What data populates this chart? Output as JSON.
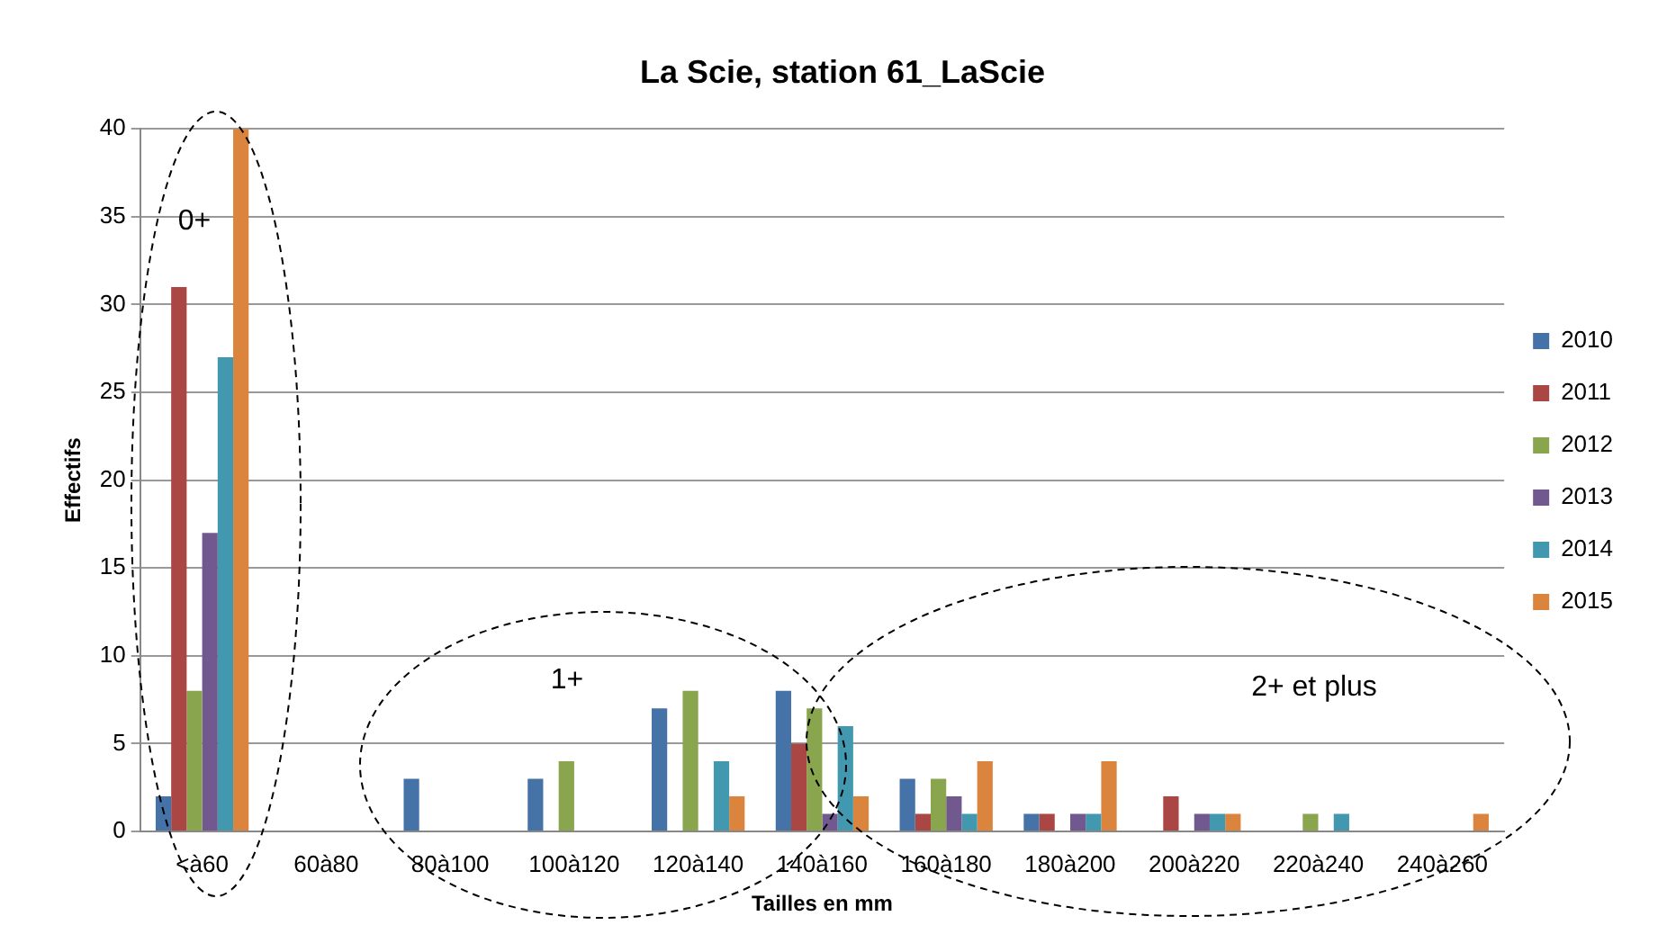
{
  "chart_data": {
    "type": "bar",
    "title": "La Scie, station 61_LaScie",
    "xlabel": "Tailles en mm",
    "ylabel": "Effectifs",
    "categories": [
      "<à60",
      "60à80",
      "80à100",
      "100à120",
      "120à140",
      "140à160",
      "160à180",
      "180à200",
      "200à220",
      "220à240",
      "240à260"
    ],
    "series": [
      {
        "name": "2010",
        "color": "#4572a7",
        "values": [
          2,
          0,
          3,
          3,
          7,
          8,
          3,
          1,
          0,
          0,
          0
        ]
      },
      {
        "name": "2011",
        "color": "#aa4643",
        "values": [
          31,
          0,
          0,
          0,
          0,
          5,
          1,
          1,
          2,
          0,
          0
        ]
      },
      {
        "name": "2012",
        "color": "#89a54e",
        "values": [
          8,
          0,
          0,
          4,
          8,
          7,
          3,
          0,
          0,
          1,
          0
        ]
      },
      {
        "name": "2013",
        "color": "#71588f",
        "values": [
          17,
          0,
          0,
          0,
          0,
          1,
          2,
          1,
          1,
          0,
          0
        ]
      },
      {
        "name": "2014",
        "color": "#4198af",
        "values": [
          27,
          0,
          0,
          0,
          4,
          6,
          1,
          1,
          1,
          1,
          0
        ]
      },
      {
        "name": "2015",
        "color": "#db843d",
        "values": [
          40,
          0,
          0,
          0,
          2,
          2,
          4,
          4,
          1,
          0,
          1
        ]
      }
    ],
    "ylim": [
      0,
      40
    ],
    "yticks": [
      0,
      5,
      10,
      15,
      20,
      25,
      30,
      35,
      40
    ],
    "grid": "y",
    "legend": "right",
    "annotations": [
      "0+",
      "1+",
      "2+ et plus"
    ]
  }
}
